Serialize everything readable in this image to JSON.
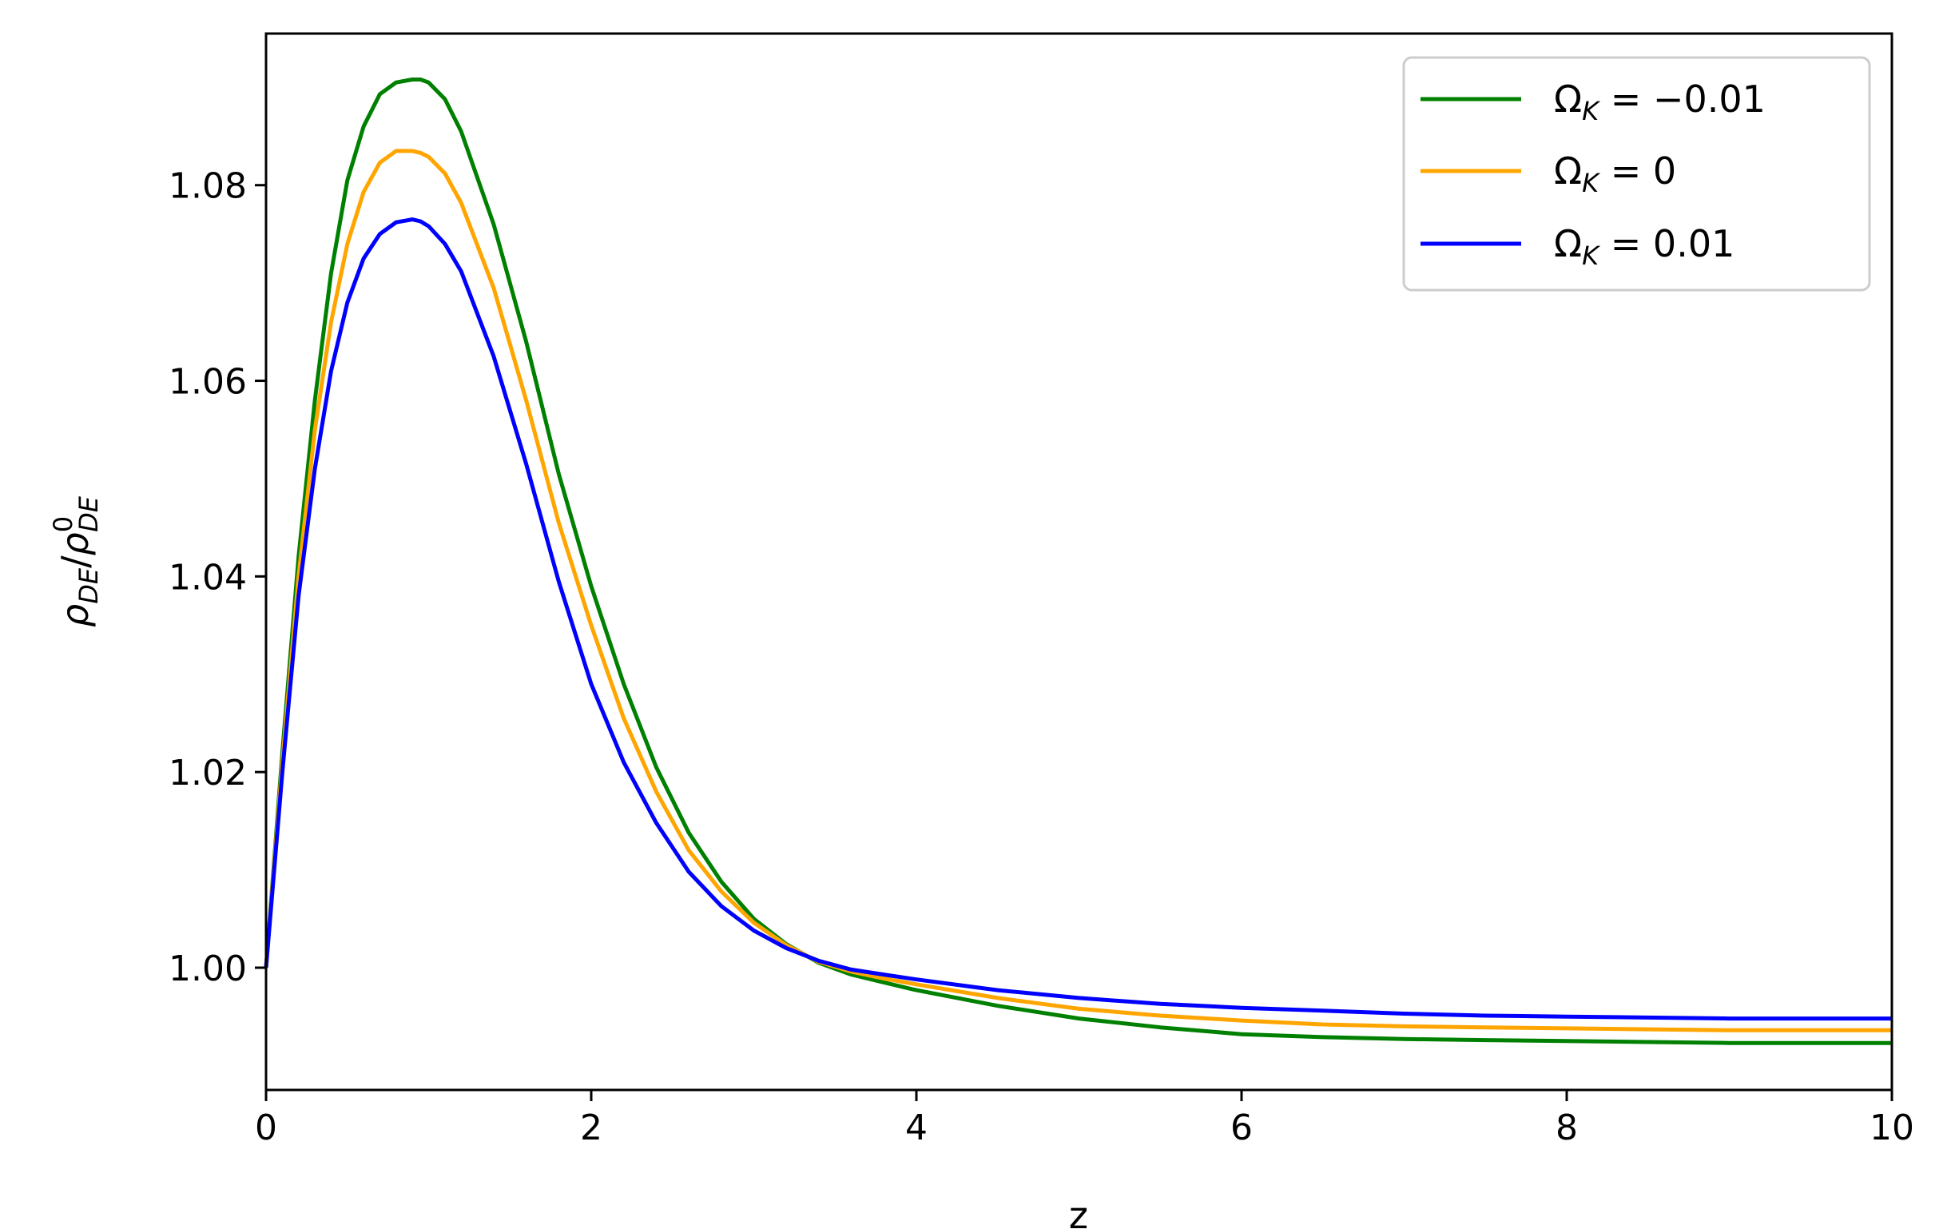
{
  "chart_data": {
    "type": "line",
    "xlabel": "z",
    "ylabel": "ρDE/ρ0DE",
    "ylabel_parts": {
      "base": "ρ",
      "sub": "DE",
      "slash": "/",
      "base2": "ρ",
      "sup2": "0",
      "sub2": "DE"
    },
    "xlim": [
      0,
      10
    ],
    "ylim": [
      0.9875,
      1.0955
    ],
    "xticks": [
      0,
      2,
      4,
      6,
      8,
      10
    ],
    "xtick_labels": [
      "0",
      "2",
      "4",
      "6",
      "8",
      "10"
    ],
    "yticks": [
      1.0,
      1.02,
      1.04,
      1.06,
      1.08
    ],
    "ytick_labels": [
      "1.00",
      "1.02",
      "1.04",
      "1.06",
      "1.08"
    ],
    "grid": false,
    "legend_position": "top-right",
    "series": [
      {
        "name": "ΩK = −0.01",
        "legend_parts": {
          "base": "Ω",
          "sub": "K",
          "rest": " = −0.01"
        },
        "color": "#008000",
        "x": [
          0,
          0.1,
          0.2,
          0.3,
          0.4,
          0.5,
          0.6,
          0.7,
          0.8,
          0.9,
          0.95,
          1.0,
          1.1,
          1.2,
          1.4,
          1.6,
          1.8,
          2.0,
          2.2,
          2.4,
          2.6,
          2.8,
          3.0,
          3.2,
          3.4,
          3.6,
          3.8,
          4.0,
          4.5,
          5.0,
          5.5,
          6.0,
          6.5,
          7.0,
          7.5,
          8.0,
          8.5,
          9.0,
          9.5,
          10.0
        ],
        "y": [
          1.0,
          1.022,
          1.042,
          1.058,
          1.071,
          1.0805,
          1.086,
          1.0893,
          1.0905,
          1.0908,
          1.0908,
          1.0905,
          1.0888,
          1.0855,
          1.076,
          1.064,
          1.0505,
          1.039,
          1.029,
          1.0205,
          1.0138,
          1.0088,
          1.005,
          1.0024,
          1.0005,
          0.9993,
          0.9985,
          0.9977,
          0.9961,
          0.9948,
          0.9939,
          0.9932,
          0.9929,
          0.9927,
          0.9926,
          0.9925,
          0.9924,
          0.9923,
          0.9923,
          0.9923
        ]
      },
      {
        "name": "ΩK = 0",
        "legend_parts": {
          "base": "Ω",
          "sub": "K",
          "rest": " = 0"
        },
        "color": "#ffa500",
        "x": [
          0,
          0.1,
          0.2,
          0.3,
          0.4,
          0.5,
          0.6,
          0.7,
          0.8,
          0.9,
          0.95,
          1.0,
          1.1,
          1.2,
          1.4,
          1.6,
          1.8,
          2.0,
          2.2,
          2.4,
          2.6,
          2.8,
          3.0,
          3.2,
          3.4,
          3.6,
          3.8,
          4.0,
          4.5,
          5.0,
          5.5,
          6.0,
          6.5,
          7.0,
          7.5,
          8.0,
          8.5,
          9.0,
          9.5,
          10.0
        ],
        "y": [
          1.0,
          1.021,
          1.04,
          1.055,
          1.066,
          1.074,
          1.0793,
          1.0823,
          1.0835,
          1.0835,
          1.0833,
          1.0829,
          1.0812,
          1.0782,
          1.0695,
          1.058,
          1.0455,
          1.035,
          1.0255,
          1.018,
          1.012,
          1.0078,
          1.0046,
          1.0023,
          1.0006,
          0.9996,
          0.9989,
          0.9983,
          0.9969,
          0.9958,
          0.9951,
          0.9946,
          0.9942,
          0.994,
          0.9939,
          0.9938,
          0.9937,
          0.9936,
          0.9936,
          0.9936
        ]
      },
      {
        "name": "ΩK = 0.01",
        "legend_parts": {
          "base": "Ω",
          "sub": "K",
          "rest": " = 0.01"
        },
        "color": "#0000ff",
        "x": [
          0,
          0.1,
          0.2,
          0.3,
          0.4,
          0.5,
          0.6,
          0.7,
          0.8,
          0.9,
          0.95,
          1.0,
          1.1,
          1.2,
          1.4,
          1.6,
          1.8,
          2.0,
          2.2,
          2.4,
          2.6,
          2.8,
          3.0,
          3.2,
          3.4,
          3.6,
          3.8,
          4.0,
          4.5,
          5.0,
          5.5,
          6.0,
          6.5,
          7.0,
          7.5,
          8.0,
          8.5,
          9.0,
          9.5,
          10.0
        ],
        "y": [
          1.0,
          1.02,
          1.038,
          1.051,
          1.061,
          1.068,
          1.0725,
          1.075,
          1.0762,
          1.0765,
          1.0763,
          1.0758,
          1.074,
          1.0712,
          1.0625,
          1.0515,
          1.0395,
          1.029,
          1.021,
          1.0148,
          1.0098,
          1.0063,
          1.0038,
          1.002,
          1.0007,
          0.9998,
          0.9993,
          0.9988,
          0.9977,
          0.9969,
          0.9963,
          0.9959,
          0.9956,
          0.9953,
          0.9951,
          0.995,
          0.9949,
          0.9948,
          0.9948,
          0.9948
        ]
      }
    ]
  }
}
